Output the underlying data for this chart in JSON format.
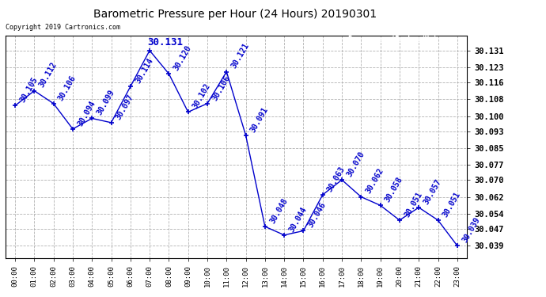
{
  "title": "Barometric Pressure per Hour (24 Hours) 20190301",
  "copyright": "Copyright 2019 Cartronics.com",
  "hours": [
    0,
    1,
    2,
    3,
    4,
    5,
    6,
    7,
    8,
    9,
    10,
    11,
    12,
    13,
    14,
    15,
    16,
    17,
    18,
    19,
    20,
    21,
    22,
    23
  ],
  "values": [
    30.105,
    30.112,
    30.106,
    30.094,
    30.099,
    30.097,
    30.114,
    30.131,
    30.12,
    30.102,
    30.106,
    30.121,
    30.091,
    30.048,
    30.044,
    30.046,
    30.063,
    30.07,
    30.062,
    30.058,
    30.051,
    30.057,
    30.051,
    30.039
  ],
  "x_labels": [
    "00:00",
    "01:00",
    "02:00",
    "03:00",
    "04:00",
    "05:00",
    "06:00",
    "07:00",
    "08:00",
    "09:00",
    "10:00",
    "11:00",
    "12:00",
    "13:00",
    "14:00",
    "15:00",
    "16:00",
    "17:00",
    "18:00",
    "19:00",
    "20:00",
    "21:00",
    "22:00",
    "23:00"
  ],
  "y_ticks": [
    30.039,
    30.047,
    30.054,
    30.062,
    30.07,
    30.077,
    30.085,
    30.093,
    30.1,
    30.108,
    30.116,
    30.123,
    30.131
  ],
  "ylim_min": 30.033,
  "ylim_max": 30.138,
  "line_color": "#0000cc",
  "marker_color": "#0000cc",
  "grid_color": "#aaaaaa",
  "bg_color": "#ffffff",
  "plot_bg": "#ffffff",
  "title_color": "#000000",
  "label_color": "#0000cc",
  "legend_bg": "#0000cc",
  "legend_fg": "#ffffff",
  "annotation_fontsize": 7.0,
  "annotation_rotation": 60,
  "peak_label": "30.131",
  "peak_hour": 7,
  "peak_value": 30.131
}
